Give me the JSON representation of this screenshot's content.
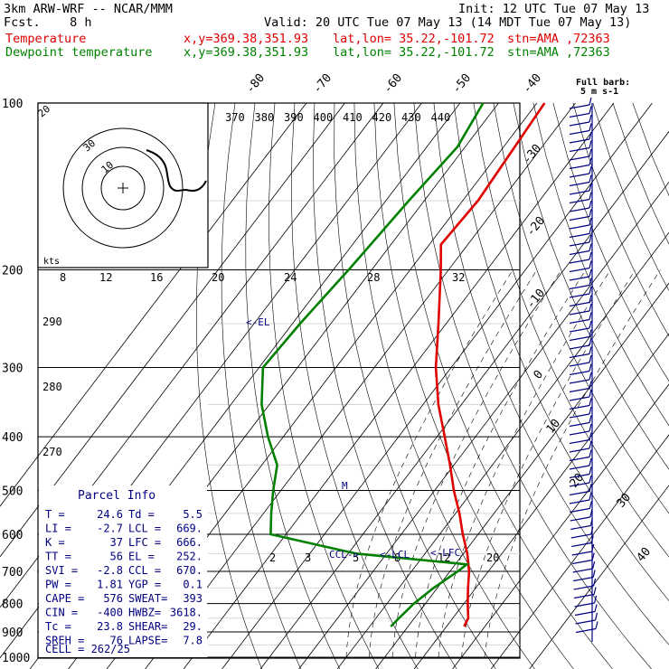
{
  "header": {
    "model": "3km ARW-WRF -- NCAR/MMM",
    "init": "Init: 12 UTC Tue 07 May 13",
    "fcst": "Fcst.    8 h",
    "valid": "Valid: 20 UTC Tue 07 May 13 (14 MDT Tue 07 May 13)",
    "temp_label": "Temperature",
    "dew_label": "Dewpoint temperature",
    "xy": "x,y=369.38,351.93",
    "latlon": "lat,lon= 35.22,-101.72",
    "stn": "stn=AMA ,72363"
  },
  "colors": {
    "temperature": "#e00000",
    "dewpoint": "#008000",
    "grid": "#000000",
    "text": "#000080"
  },
  "wind_legend": {
    "line1": "Full barb:",
    "line2": "5 m s-1"
  },
  "hodograph": {
    "ring_labels": [
      "30",
      "20",
      "10"
    ],
    "kts_label": "kts"
  },
  "markers": {
    "el": "<-EL",
    "lcl": "<-LCL",
    "lfc": "<-LFC",
    "ccl": "CCL->",
    "m": "M"
  },
  "parcel_info": {
    "title": "Parcel Info",
    "rows": [
      [
        "T  =",
        "24.6",
        "Td =",
        "5.5"
      ],
      [
        "LI =",
        "-2.7",
        "LCL =",
        "669."
      ],
      [
        "K  =",
        "37",
        "LFC =",
        "666."
      ],
      [
        "TT =",
        "56",
        "EL =",
        "252."
      ],
      [
        "SVI =",
        "-2.8",
        "CCL =",
        "670."
      ],
      [
        "PW =",
        "1.81",
        "YGP =",
        "0.1"
      ],
      [
        "CAPE =",
        "576",
        "SWEAT=",
        "393"
      ],
      [
        "CIN =",
        "-400",
        "HWBZ=",
        "3618."
      ],
      [
        "Tc =",
        "23.8",
        "SHEAR=",
        "29."
      ],
      [
        "SREH =",
        "76",
        "LAPSE=",
        "7.8"
      ]
    ],
    "cell": "CELL = 262/25"
  },
  "chart_data": {
    "type": "skew-t",
    "pressure_axis_labels": [
      "100",
      "200",
      "300",
      "400",
      "500",
      "600",
      "700",
      "800",
      "900",
      "1000"
    ],
    "theta_labels": [
      "370",
      "380",
      "390",
      "400",
      "410",
      "420",
      "430",
      "440"
    ],
    "mixing_ratio_labels": [
      "8",
      "12",
      "16",
      "20",
      "24",
      "28",
      "32"
    ],
    "mixing_ratio_low_labels": [
      "2",
      "3",
      "5",
      "8",
      "12",
      "20"
    ],
    "isotherm_labels_top": [
      "-80",
      "-70",
      "-60",
      "-50",
      "-40"
    ],
    "isotherm_labels_right": [
      "-30",
      "-20",
      "-10",
      "0",
      "10",
      "20",
      "30",
      "40"
    ],
    "theta_low_labels": [
      "290",
      "280",
      "270"
    ],
    "series": [
      {
        "name": "Temperature",
        "pressure": [
          100,
          150,
          180,
          200,
          250,
          300,
          350,
          400,
          450,
          500,
          550,
          600,
          650,
          700,
          750,
          800,
          850,
          880
        ],
        "temperature": [
          -58,
          -56,
          -57,
          -52,
          -42,
          -34,
          -26,
          -18,
          -11,
          -5,
          1,
          6,
          11,
          15,
          18,
          21,
          24,
          24.6
        ]
      },
      {
        "name": "Dewpoint temperature",
        "pressure": [
          100,
          120,
          150,
          200,
          250,
          300,
          350,
          400,
          450,
          500,
          550,
          600,
          650,
          680,
          700,
          750,
          800,
          850,
          880
        ],
        "dewpoint": [
          -74,
          -72,
          -74,
          -76,
          -78,
          -79,
          -72,
          -64,
          -56,
          -52,
          -48,
          -44,
          -18,
          13,
          12,
          9,
          7,
          6,
          5.5
        ]
      }
    ]
  }
}
